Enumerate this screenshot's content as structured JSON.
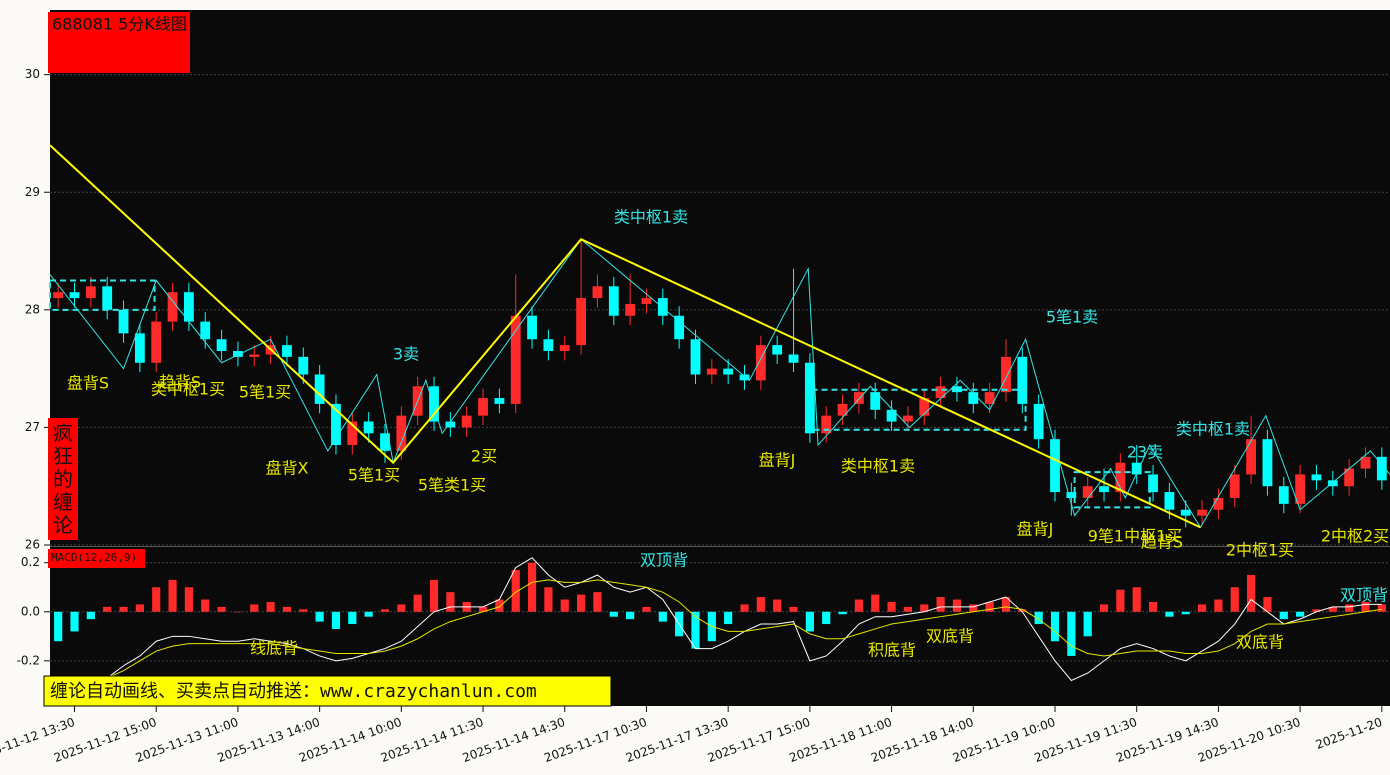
{
  "chart_data": [
    {
      "type": "candlestick",
      "title": "688081 5分K线图",
      "categories": [
        null,
        "2025-11-12 13:30",
        null,
        null,
        null,
        null,
        "2025-11-12 15:00",
        null,
        null,
        null,
        null,
        "2025-11-13 11:00",
        null,
        null,
        null,
        null,
        "2025-11-13 14:00",
        null,
        null,
        null,
        null,
        "2025-11-14 10:00",
        null,
        null,
        null,
        null,
        "2025-11-14 11:30",
        null,
        null,
        null,
        null,
        "2025-11-14 14:30",
        null,
        null,
        null,
        null,
        "2025-11-17 10:30",
        null,
        null,
        null,
        null,
        "2025-11-17 13:30",
        null,
        null,
        null,
        null,
        "2025-11-17 15:00",
        null,
        null,
        null,
        null,
        "2025-11-18 11:00",
        null,
        null,
        null,
        null,
        "2025-11-18 14:00",
        null,
        null,
        null,
        null,
        "2025-11-19 10:00",
        null,
        null,
        null,
        null,
        "2025-11-19 11:30",
        null,
        null,
        null,
        null,
        "2025-11-19 14:30",
        null,
        null,
        null,
        null,
        "2025-11-20 10:30",
        null,
        null,
        null,
        null,
        "2025-11-20"
      ],
      "open": [
        28.1,
        28.15,
        28.1,
        28.2,
        28.0,
        27.8,
        27.55,
        27.9,
        28.15,
        27.9,
        27.75,
        27.65,
        27.6,
        27.62,
        27.7,
        27.6,
        27.45,
        27.2,
        26.85,
        27.05,
        26.95,
        26.8,
        27.1,
        27.35,
        27.05,
        27.0,
        27.1,
        27.25,
        27.2,
        27.95,
        27.75,
        27.65,
        27.7,
        28.1,
        28.2,
        27.95,
        28.05,
        28.1,
        27.95,
        27.75,
        27.45,
        27.5,
        27.45,
        27.4,
        27.7,
        27.62,
        27.55,
        26.95,
        27.1,
        27.2,
        27.3,
        27.15,
        27.05,
        27.1,
        27.25,
        27.35,
        27.3,
        27.2,
        27.3,
        27.6,
        27.2,
        26.9,
        26.45,
        26.4,
        26.5,
        26.45,
        26.7,
        26.6,
        26.45,
        26.3,
        26.25,
        26.3,
        26.4,
        26.6,
        26.9,
        26.5,
        26.35,
        26.6,
        26.55,
        26.5,
        26.65,
        26.75
      ],
      "high": [
        28.23,
        28.23,
        28.28,
        28.28,
        28.08,
        27.88,
        27.98,
        28.23,
        28.23,
        27.98,
        27.83,
        27.73,
        27.7,
        27.78,
        27.78,
        27.68,
        27.53,
        27.28,
        27.13,
        27.13,
        27.03,
        27.18,
        27.43,
        27.43,
        27.13,
        27.18,
        27.33,
        27.33,
        28.3,
        28.03,
        27.83,
        27.78,
        28.6,
        28.3,
        28.28,
        28.3,
        28.18,
        28.18,
        28.03,
        27.83,
        27.58,
        27.58,
        27.53,
        27.78,
        27.78,
        28.35,
        27.63,
        27.18,
        27.28,
        27.38,
        27.38,
        27.23,
        27.18,
        27.33,
        27.43,
        27.43,
        27.38,
        27.38,
        27.75,
        27.68,
        27.28,
        26.98,
        26.53,
        26.58,
        26.65,
        26.78,
        26.85,
        26.68,
        26.53,
        26.38,
        26.38,
        26.48,
        26.68,
        27.1,
        26.98,
        26.58,
        26.68,
        26.68,
        26.63,
        26.73,
        26.83,
        26.83
      ],
      "low": [
        28.02,
        28.02,
        28.02,
        27.92,
        27.72,
        27.47,
        27.47,
        27.82,
        27.82,
        27.67,
        27.57,
        27.52,
        27.52,
        27.54,
        27.52,
        27.37,
        27.12,
        26.77,
        26.77,
        26.87,
        26.7,
        26.72,
        27.02,
        26.97,
        26.92,
        26.92,
        27.02,
        27.12,
        27.12,
        27.67,
        27.57,
        27.57,
        27.62,
        28.02,
        27.87,
        27.87,
        27.97,
        27.87,
        27.67,
        27.37,
        27.37,
        27.37,
        27.32,
        27.32,
        27.54,
        27.47,
        26.87,
        26.87,
        27.02,
        27.12,
        27.07,
        26.97,
        26.97,
        27.02,
        27.17,
        27.22,
        27.12,
        27.12,
        27.22,
        27.12,
        26.82,
        26.37,
        26.25,
        26.32,
        26.37,
        26.37,
        26.52,
        26.37,
        26.22,
        26.15,
        26.17,
        26.22,
        26.32,
        26.52,
        26.42,
        26.27,
        26.27,
        26.47,
        26.42,
        26.42,
        26.57,
        26.47
      ],
      "close": [
        28.15,
        28.1,
        28.2,
        28.0,
        27.8,
        27.55,
        27.9,
        28.15,
        27.9,
        27.75,
        27.65,
        27.6,
        27.62,
        27.7,
        27.6,
        27.45,
        27.2,
        26.85,
        27.05,
        26.95,
        26.8,
        27.1,
        27.35,
        27.05,
        27.0,
        27.1,
        27.25,
        27.2,
        27.95,
        27.75,
        27.65,
        27.7,
        28.1,
        28.2,
        27.95,
        28.05,
        28.1,
        27.95,
        27.75,
        27.45,
        27.5,
        27.45,
        27.4,
        27.7,
        27.62,
        27.55,
        26.95,
        27.1,
        27.2,
        27.3,
        27.15,
        27.05,
        27.1,
        27.25,
        27.35,
        27.3,
        27.2,
        27.3,
        27.6,
        27.2,
        26.9,
        26.45,
        26.4,
        26.5,
        26.45,
        26.7,
        26.6,
        26.45,
        26.3,
        26.25,
        26.3,
        26.4,
        26.6,
        26.9,
        26.5,
        26.35,
        26.6,
        26.55,
        26.5,
        26.65,
        26.75,
        26.55
      ],
      "up_color": "#ff2a2a",
      "down_color": "#00ffff",
      "ylim": [
        26,
        30.55
      ],
      "yticks": [
        26,
        27,
        28,
        29,
        30
      ],
      "grid": true,
      "segments": {
        "color": "#ffff00",
        "x": [
          -0.5,
          20.5,
          32,
          69.9
        ],
        "y": [
          29.4,
          26.7,
          28.6,
          26.15
        ]
      },
      "strokes": {
        "color": "#33e6e6",
        "x": [
          -0.5,
          4,
          6,
          10,
          13,
          16.5,
          19.5,
          20.5,
          22.5,
          23.5,
          32,
          42.3,
          45.9,
          46.5,
          49.7,
          52.1,
          55.2,
          57,
          59.2,
          62.2,
          64.4,
          65.3,
          66.8,
          69.9,
          73.9,
          76,
          80.3,
          81.5
        ],
        "y": [
          28.3,
          27.5,
          28.25,
          27.55,
          27.75,
          26.8,
          27.45,
          26.7,
          27.4,
          26.95,
          28.6,
          27.4,
          28.35,
          26.85,
          27.35,
          27.0,
          27.4,
          27.15,
          27.75,
          26.25,
          26.65,
          26.4,
          26.85,
          26.15,
          27.1,
          26.3,
          26.8,
          26.6
        ]
      },
      "centers": {
        "color": "#33e6e6",
        "boxes": [
          {
            "x": [
              -0.5,
              5.9
            ],
            "y": [
              28.0,
              28.25
            ]
          },
          {
            "x": [
              46.1,
              59.2
            ],
            "y": [
              26.98,
              27.32
            ]
          },
          {
            "x": [
              62.2,
              66.8
            ],
            "y": [
              26.32,
              26.62
            ]
          }
        ]
      },
      "annotations": [
        {
          "text": "盘背S",
          "color": "#e6e600"
        },
        {
          "text": "趋背S",
          "color": "#e6e600"
        },
        {
          "text": "类中枢1买",
          "color": "#e6e600"
        },
        {
          "text": "5笔1买",
          "color": "#e6e600"
        },
        {
          "text": "3卖",
          "color": "#33e6e6"
        },
        {
          "text": "盘背X",
          "color": "#e6e600"
        },
        {
          "text": "5笔1买",
          "color": "#e6e600"
        },
        {
          "text": "5笔类1买",
          "color": "#e6e600"
        },
        {
          "text": "2买",
          "color": "#e6e600"
        },
        {
          "text": "类中枢1卖",
          "color": "#33e6e6"
        },
        {
          "text": "5笔1卖",
          "color": "#33e6e6"
        },
        {
          "text": "盘背J",
          "color": "#e6e600"
        },
        {
          "text": "类中枢1卖",
          "color": "#e6e600"
        },
        {
          "text": "23卖",
          "color": "#33e6e6"
        },
        {
          "text": "类中枢1卖",
          "color": "#33e6e6"
        },
        {
          "text": "盘背J",
          "color": "#e6e600"
        },
        {
          "text": "9笔1中枢1买",
          "color": "#e6e600"
        },
        {
          "text": "趋背S",
          "color": "#e6e600"
        },
        {
          "text": "2中枢1买",
          "color": "#e6e600"
        },
        {
          "text": "2中枢2买",
          "color": "#e6e600"
        }
      ]
    },
    {
      "type": "macd",
      "title": "MACD(12,26,9)",
      "values": [
        -0.12,
        -0.08,
        -0.03,
        0.02,
        0.02,
        0.03,
        0.1,
        0.13,
        0.1,
        0.05,
        0.02,
        0.0,
        0.03,
        0.04,
        0.02,
        0.01,
        -0.04,
        -0.07,
        -0.05,
        -0.02,
        0.01,
        0.03,
        0.07,
        0.13,
        0.08,
        0.04,
        0.02,
        0.05,
        0.17,
        0.2,
        0.1,
        0.05,
        0.07,
        0.08,
        -0.02,
        -0.03,
        0.02,
        -0.04,
        -0.1,
        -0.15,
        -0.12,
        -0.05,
        0.03,
        0.06,
        0.05,
        0.02,
        -0.08,
        -0.05,
        -0.01,
        0.05,
        0.07,
        0.04,
        0.02,
        0.03,
        0.06,
        0.05,
        0.03,
        0.04,
        0.06,
        0.01,
        -0.05,
        -0.12,
        -0.18,
        -0.1,
        0.03,
        0.09,
        0.1,
        0.04,
        -0.02,
        -0.01,
        0.03,
        0.05,
        0.1,
        0.15,
        0.06,
        -0.03,
        -0.02,
        0.01,
        0.02,
        0.03,
        0.04,
        0.03
      ],
      "up_color": "#ff2a2a",
      "down_color": "#00ffff",
      "series": [
        {
          "color": "#ffffff",
          "values": [
            -0.4,
            -0.35,
            -0.3,
            -0.27,
            -0.22,
            -0.18,
            -0.12,
            -0.1,
            -0.1,
            -0.11,
            -0.12,
            -0.12,
            -0.11,
            -0.12,
            -0.13,
            -0.15,
            -0.18,
            -0.2,
            -0.19,
            -0.17,
            -0.15,
            -0.12,
            -0.06,
            0.0,
            0.02,
            0.02,
            0.02,
            0.05,
            0.18,
            0.22,
            0.15,
            0.1,
            0.12,
            0.15,
            0.1,
            0.08,
            0.1,
            0.05,
            -0.05,
            -0.15,
            -0.15,
            -0.12,
            -0.08,
            -0.05,
            -0.05,
            -0.04,
            -0.2,
            -0.18,
            -0.12,
            -0.05,
            -0.02,
            -0.02,
            -0.01,
            0.0,
            0.02,
            0.02,
            0.02,
            0.04,
            0.06,
            0.0,
            -0.1,
            -0.2,
            -0.28,
            -0.25,
            -0.2,
            -0.15,
            -0.13,
            -0.15,
            -0.18,
            -0.2,
            -0.16,
            -0.12,
            -0.05,
            0.05,
            0.0,
            -0.05,
            -0.03,
            0.0,
            0.02,
            0.02,
            0.03,
            0.03
          ]
        },
        {
          "color": "#e6e600",
          "values": [
            -0.35,
            -0.33,
            -0.3,
            -0.27,
            -0.24,
            -0.2,
            -0.16,
            -0.14,
            -0.13,
            -0.13,
            -0.13,
            -0.13,
            -0.13,
            -0.13,
            -0.14,
            -0.15,
            -0.16,
            -0.17,
            -0.17,
            -0.17,
            -0.16,
            -0.14,
            -0.11,
            -0.07,
            -0.04,
            -0.02,
            0.0,
            0.02,
            0.08,
            0.12,
            0.13,
            0.12,
            0.12,
            0.13,
            0.12,
            0.11,
            0.1,
            0.08,
            0.04,
            -0.02,
            -0.06,
            -0.08,
            -0.08,
            -0.07,
            -0.06,
            -0.05,
            -0.09,
            -0.11,
            -0.11,
            -0.09,
            -0.07,
            -0.05,
            -0.04,
            -0.03,
            -0.02,
            -0.01,
            0.0,
            0.01,
            0.02,
            0.01,
            -0.03,
            -0.08,
            -0.14,
            -0.17,
            -0.18,
            -0.17,
            -0.16,
            -0.16,
            -0.16,
            -0.17,
            -0.17,
            -0.16,
            -0.13,
            -0.08,
            -0.05,
            -0.05,
            -0.04,
            -0.03,
            -0.02,
            -0.01,
            0.0,
            0.01
          ]
        }
      ],
      "ylim": [
        -0.38,
        0.26
      ],
      "yticks": [
        -0.2,
        {
          "value": 0,
          "label": "0.0"
        },
        {
          "value": 0.2,
          "label": "0.2"
        }
      ],
      "grid": true,
      "annotations": [
        {
          "text": "双顶背",
          "color": "#33e6e6"
        },
        {
          "text": "线底背",
          "color": "#e6e600"
        },
        {
          "text": "积底背",
          "color": "#e6e600"
        },
        {
          "text": "双底背",
          "color": "#e6e600"
        },
        {
          "text": "双底背",
          "color": "#e6e600"
        },
        {
          "text": "双顶背",
          "color": "#33e6e6"
        }
      ]
    }
  ],
  "side_label": "疯狂的缠论",
  "footer": "缠论自动画线、买卖点自动推送：www.crazychanlun.com"
}
